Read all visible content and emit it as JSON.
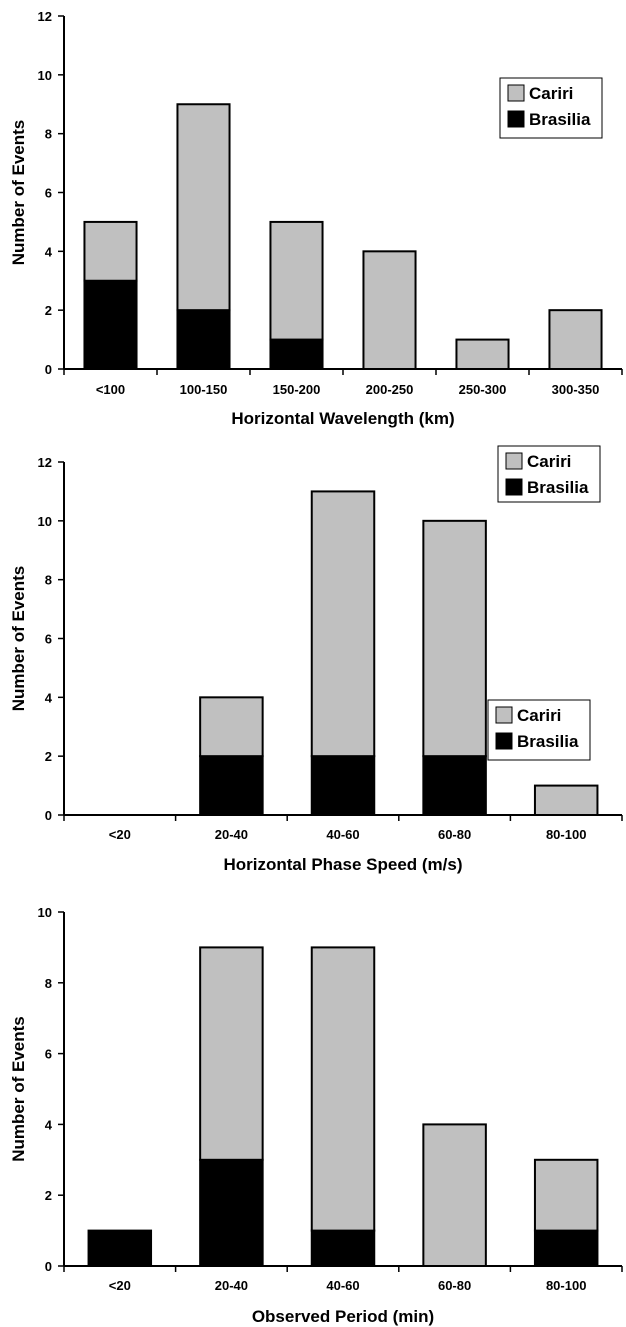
{
  "chart_data": [
    {
      "type": "bar",
      "stacked": true,
      "title": "",
      "xlabel": "Horizontal Wavelength (km)",
      "ylabel": "Number of Events",
      "ylim": [
        0,
        12
      ],
      "yticks": [
        0,
        2,
        4,
        6,
        8,
        10,
        12
      ],
      "categories": [
        "<100",
        "100-150",
        "150-200",
        "200-250",
        "250-300",
        "300-350"
      ],
      "series": [
        {
          "name": "Brasilia",
          "color": "#000000",
          "values": [
            3,
            2,
            1,
            0,
            0,
            0
          ]
        },
        {
          "name": "Cariri",
          "color": "#c0c0c0",
          "values": [
            2,
            7,
            4,
            4,
            1,
            2
          ]
        }
      ],
      "legend": {
        "position": "top-right",
        "items": [
          "Cariri",
          "Brasilia"
        ]
      },
      "grid": false
    },
    {
      "type": "bar",
      "stacked": true,
      "title": "",
      "xlabel": "Horizontal Phase Speed (m/s)",
      "ylabel": "Number of Events",
      "ylim": [
        0,
        12
      ],
      "yticks": [
        0,
        2,
        4,
        6,
        8,
        10,
        12
      ],
      "categories": [
        "<20",
        "20-40",
        "40-60",
        "60-80",
        "80-100"
      ],
      "series": [
        {
          "name": "Brasilia",
          "color": "#000000",
          "values": [
            0,
            2,
            2,
            2,
            0
          ]
        },
        {
          "name": "Cariri",
          "color": "#c0c0c0",
          "values": [
            0,
            2,
            9,
            8,
            1
          ]
        }
      ],
      "legend": {
        "position": "top-right",
        "items": [
          "Cariri",
          "Brasilia"
        ]
      },
      "grid": false
    },
    {
      "type": "bar",
      "stacked": true,
      "title": "",
      "xlabel": "Observed Period (min)",
      "ylabel": "Number of Events",
      "ylim": [
        0,
        10
      ],
      "yticks": [
        0,
        2,
        4,
        6,
        8,
        10
      ],
      "categories": [
        "<20",
        "20-40",
        "40-60",
        "60-80",
        "80-100"
      ],
      "series": [
        {
          "name": "Brasilia",
          "color": "#000000",
          "values": [
            1,
            3,
            1,
            0,
            1
          ]
        },
        {
          "name": "Cariri",
          "color": "#c0c0c0",
          "values": [
            0,
            6,
            8,
            4,
            2
          ]
        }
      ],
      "legend": {
        "position": "top-right",
        "items": [
          "Cariri",
          "Brasilia"
        ]
      },
      "grid": false
    }
  ]
}
